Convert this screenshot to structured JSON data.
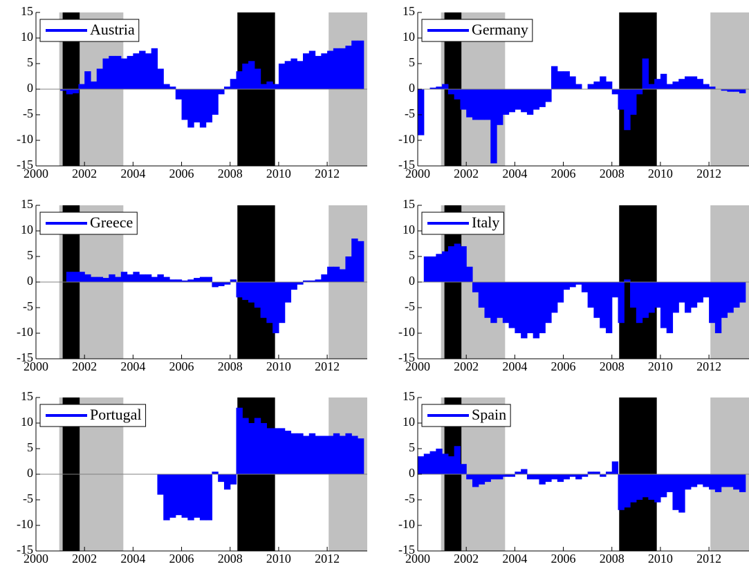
{
  "chart_data": [
    {
      "type": "bar",
      "xlim": [
        2000,
        2013.65
      ],
      "ylim": [
        -15,
        15
      ],
      "xticks": [
        2000,
        2002,
        2004,
        2006,
        2008,
        2010,
        2012
      ],
      "yticks": [
        -15,
        -10,
        -5,
        0,
        5,
        10,
        15
      ],
      "shading": [
        {
          "start": 2000.96,
          "end": 2003.6,
          "color": "#c0c0c0"
        },
        {
          "start": 2012.06,
          "end": 2013.65,
          "color": "#c0c0c0"
        },
        {
          "start": 2001.1,
          "end": 2001.8,
          "color": "#000000"
        },
        {
          "start": 2008.3,
          "end": 2009.85,
          "color": "#000000"
        }
      ],
      "x": [
        2000,
        2000.25,
        2000.5,
        2000.75,
        2001,
        2001.25,
        2001.5,
        2001.75,
        2002,
        2002.25,
        2002.5,
        2002.75,
        2003,
        2003.25,
        2003.5,
        2003.75,
        2004,
        2004.25,
        2004.5,
        2004.75,
        2005,
        2005.25,
        2005.5,
        2005.75,
        2006,
        2006.25,
        2006.5,
        2006.75,
        2007,
        2007.25,
        2007.5,
        2007.75,
        2008,
        2008.25,
        2008.5,
        2008.75,
        2009,
        2009.25,
        2009.5,
        2009.75,
        2010,
        2010.25,
        2010.5,
        2010.75,
        2011,
        2011.25,
        2011.5,
        2011.75,
        2012,
        2012.25,
        2012.5,
        2012.75,
        2013,
        2013.25
      ],
      "series": [
        {
          "name": "Austria",
          "color": "#0000ff",
          "values": [
            null,
            null,
            null,
            null,
            -0.3,
            -1,
            -0.8,
            1,
            3.5,
            1.5,
            4,
            6,
            6.5,
            6.5,
            6,
            6.5,
            7,
            7.5,
            7,
            8,
            4,
            1,
            0.5,
            -2,
            -6,
            -7.5,
            -6.5,
            -7.5,
            -6.5,
            -5,
            -1,
            0.5,
            2,
            3.5,
            5,
            5.5,
            4,
            1,
            1.5,
            1,
            5,
            5.5,
            6,
            5.5,
            7,
            7.5,
            6.5,
            7,
            7.5,
            8,
            8,
            8.5,
            9.5,
            9.5
          ]
        }
      ]
    },
    {
      "type": "bar",
      "xlim": [
        2000,
        2013.65
      ],
      "ylim": [
        -15,
        15
      ],
      "xticks": [
        2000,
        2002,
        2004,
        2006,
        2008,
        2010,
        2012
      ],
      "yticks": [
        -15,
        -10,
        -5,
        0,
        5,
        10,
        15
      ],
      "shading": [
        {
          "start": 2000.96,
          "end": 2003.6,
          "color": "#c0c0c0"
        },
        {
          "start": 2012.06,
          "end": 2013.65,
          "color": "#c0c0c0"
        },
        {
          "start": 2001.1,
          "end": 2001.8,
          "color": "#000000"
        },
        {
          "start": 2008.3,
          "end": 2009.85,
          "color": "#000000"
        }
      ],
      "x": [
        2000,
        2000.25,
        2000.5,
        2000.75,
        2001,
        2001.25,
        2001.5,
        2001.75,
        2002,
        2002.25,
        2002.5,
        2002.75,
        2003,
        2003.25,
        2003.5,
        2003.75,
        2004,
        2004.25,
        2004.5,
        2004.75,
        2005,
        2005.25,
        2005.5,
        2005.75,
        2006,
        2006.25,
        2006.5,
        2006.75,
        2007,
        2007.25,
        2007.5,
        2007.75,
        2008,
        2008.25,
        2008.5,
        2008.75,
        2009,
        2009.25,
        2009.5,
        2009.75,
        2010,
        2010.25,
        2010.5,
        2010.75,
        2011,
        2011.25,
        2011.5,
        2011.75,
        2012,
        2012.25,
        2012.5,
        2012.75,
        2013,
        2013.25
      ],
      "series": [
        {
          "name": "Germany",
          "color": "#0000ff",
          "values": [
            -9,
            0,
            0.3,
            0.5,
            1,
            -1,
            -2,
            -4,
            -5.5,
            -6,
            -6,
            -6,
            -14.5,
            -7,
            -5,
            -4.5,
            -4,
            -4.5,
            -5,
            -4,
            -3.5,
            -2.5,
            4.5,
            3.5,
            3.5,
            2.5,
            1,
            0,
            1,
            1.5,
            2.5,
            1.5,
            -1,
            -4,
            -8,
            -5,
            -1,
            6,
            1,
            2,
            3,
            1,
            1.5,
            2,
            2.5,
            2.5,
            2,
            1,
            0.5,
            0,
            -0.3,
            -0.5,
            -0.5,
            -0.8
          ]
        }
      ]
    },
    {
      "type": "bar",
      "xlim": [
        2000,
        2013.65
      ],
      "ylim": [
        -15,
        15
      ],
      "xticks": [
        2000,
        2002,
        2004,
        2006,
        2008,
        2010,
        2012
      ],
      "yticks": [
        -15,
        -10,
        -5,
        0,
        5,
        10,
        15
      ],
      "shading": [
        {
          "start": 2000.96,
          "end": 2003.6,
          "color": "#c0c0c0"
        },
        {
          "start": 2012.06,
          "end": 2013.65,
          "color": "#c0c0c0"
        },
        {
          "start": 2001.1,
          "end": 2001.8,
          "color": "#000000"
        },
        {
          "start": 2008.3,
          "end": 2009.85,
          "color": "#000000"
        }
      ],
      "x": [
        2000,
        2000.25,
        2000.5,
        2000.75,
        2001,
        2001.25,
        2001.5,
        2001.75,
        2002,
        2002.25,
        2002.5,
        2002.75,
        2003,
        2003.25,
        2003.5,
        2003.75,
        2004,
        2004.25,
        2004.5,
        2004.75,
        2005,
        2005.25,
        2005.5,
        2005.75,
        2006,
        2006.25,
        2006.5,
        2006.75,
        2007,
        2007.25,
        2007.5,
        2007.75,
        2008,
        2008.25,
        2008.5,
        2008.75,
        2009,
        2009.25,
        2009.5,
        2009.75,
        2010,
        2010.25,
        2010.5,
        2010.75,
        2011,
        2011.25,
        2011.5,
        2011.75,
        2012,
        2012.25,
        2012.5,
        2012.75,
        2013,
        2013.25
      ],
      "series": [
        {
          "name": "Greece",
          "color": "#0000ff",
          "values": [
            null,
            null,
            null,
            null,
            null,
            2,
            2,
            2,
            1.5,
            1,
            1,
            0.8,
            1.5,
            1,
            2,
            1.5,
            2,
            1.5,
            1.5,
            1,
            1.5,
            1,
            0.5,
            0.5,
            0.3,
            0.5,
            0.8,
            1,
            1,
            -1,
            -0.8,
            -0.5,
            0.5,
            -3,
            -3.5,
            -4,
            -5,
            -7,
            -8,
            -10,
            -8,
            -4,
            -1.5,
            -0.5,
            0.3,
            0.3,
            0.5,
            1.5,
            3,
            3,
            2.5,
            5,
            8.5,
            8
          ]
        }
      ]
    },
    {
      "type": "bar",
      "xlim": [
        2000,
        2013.65
      ],
      "ylim": [
        -15,
        15
      ],
      "xticks": [
        2000,
        2002,
        2004,
        2006,
        2008,
        2010,
        2012
      ],
      "yticks": [
        -15,
        -10,
        -5,
        0,
        5,
        10,
        15
      ],
      "shading": [
        {
          "start": 2000.96,
          "end": 2003.6,
          "color": "#c0c0c0"
        },
        {
          "start": 2012.06,
          "end": 2013.65,
          "color": "#c0c0c0"
        },
        {
          "start": 2001.1,
          "end": 2001.8,
          "color": "#000000"
        },
        {
          "start": 2008.3,
          "end": 2009.85,
          "color": "#000000"
        }
      ],
      "x": [
        2000,
        2000.25,
        2000.5,
        2000.75,
        2001,
        2001.25,
        2001.5,
        2001.75,
        2002,
        2002.25,
        2002.5,
        2002.75,
        2003,
        2003.25,
        2003.5,
        2003.75,
        2004,
        2004.25,
        2004.5,
        2004.75,
        2005,
        2005.25,
        2005.5,
        2005.75,
        2006,
        2006.25,
        2006.5,
        2006.75,
        2007,
        2007.25,
        2007.5,
        2007.75,
        2008,
        2008.25,
        2008.5,
        2008.75,
        2009,
        2009.25,
        2009.5,
        2009.75,
        2010,
        2010.25,
        2010.5,
        2010.75,
        2011,
        2011.25,
        2011.5,
        2011.75,
        2012,
        2012.25,
        2012.5,
        2012.75,
        2013,
        2013.25
      ],
      "series": [
        {
          "name": "Italy",
          "color": "#0000ff",
          "values": [
            null,
            5,
            5,
            5.5,
            6,
            7,
            7.5,
            7,
            3,
            -2,
            -5,
            -7,
            -8,
            -7,
            -8,
            -9,
            -10,
            -11,
            -10,
            -11,
            -10,
            -8,
            -6,
            -4,
            -1.5,
            -1,
            -0.5,
            -2,
            -5,
            -7,
            -9,
            -10,
            -3,
            -8,
            0.5,
            -5,
            -8,
            -7,
            -6,
            -5,
            -9,
            -10,
            -6,
            -4,
            -6,
            -5,
            -4,
            -3,
            -8,
            -10,
            -7,
            -6,
            -5,
            -4
          ]
        }
      ]
    },
    {
      "type": "bar",
      "xlim": [
        2000,
        2013.65
      ],
      "ylim": [
        -15,
        15
      ],
      "xticks": [
        2000,
        2002,
        2004,
        2006,
        2008,
        2010,
        2012
      ],
      "yticks": [
        -15,
        -10,
        -5,
        0,
        5,
        10,
        15
      ],
      "shading": [
        {
          "start": 2000.96,
          "end": 2003.6,
          "color": "#c0c0c0"
        },
        {
          "start": 2012.06,
          "end": 2013.65,
          "color": "#c0c0c0"
        },
        {
          "start": 2001.1,
          "end": 2001.8,
          "color": "#000000"
        },
        {
          "start": 2008.3,
          "end": 2009.85,
          "color": "#000000"
        }
      ],
      "x": [
        2000,
        2000.25,
        2000.5,
        2000.75,
        2001,
        2001.25,
        2001.5,
        2001.75,
        2002,
        2002.25,
        2002.5,
        2002.75,
        2003,
        2003.25,
        2003.5,
        2003.75,
        2004,
        2004.25,
        2004.5,
        2004.75,
        2005,
        2005.25,
        2005.5,
        2005.75,
        2006,
        2006.25,
        2006.5,
        2006.75,
        2007,
        2007.25,
        2007.5,
        2007.75,
        2008,
        2008.25,
        2008.5,
        2008.75,
        2009,
        2009.25,
        2009.5,
        2009.75,
        2010,
        2010.25,
        2010.5,
        2010.75,
        2011,
        2011.25,
        2011.5,
        2011.75,
        2012,
        2012.25,
        2012.5,
        2012.75,
        2013,
        2013.25
      ],
      "series": [
        {
          "name": "Portugal",
          "color": "#0000ff",
          "values": [
            null,
            null,
            null,
            null,
            null,
            null,
            null,
            null,
            null,
            null,
            null,
            null,
            null,
            null,
            null,
            null,
            null,
            null,
            null,
            null,
            -4,
            -9,
            -8.5,
            -8,
            -8.5,
            -9,
            -8.5,
            -9,
            -9,
            0.5,
            -1.5,
            -3,
            -2,
            13,
            11,
            10,
            11,
            10,
            9,
            9,
            9,
            8.5,
            8,
            8,
            7.5,
            8,
            7.5,
            7.5,
            7.5,
            8,
            7.5,
            8,
            7.5,
            7
          ]
        }
      ]
    },
    {
      "type": "bar",
      "xlim": [
        2000,
        2013.65
      ],
      "ylim": [
        -15,
        15
      ],
      "xticks": [
        2000,
        2002,
        2004,
        2006,
        2008,
        2010,
        2012
      ],
      "yticks": [
        -15,
        -10,
        -5,
        0,
        5,
        10,
        15
      ],
      "shading": [
        {
          "start": 2000.96,
          "end": 2003.6,
          "color": "#c0c0c0"
        },
        {
          "start": 2012.06,
          "end": 2013.65,
          "color": "#c0c0c0"
        },
        {
          "start": 2001.1,
          "end": 2001.8,
          "color": "#000000"
        },
        {
          "start": 2008.3,
          "end": 2009.85,
          "color": "#000000"
        }
      ],
      "x": [
        2000,
        2000.25,
        2000.5,
        2000.75,
        2001,
        2001.25,
        2001.5,
        2001.75,
        2002,
        2002.25,
        2002.5,
        2002.75,
        2003,
        2003.25,
        2003.5,
        2003.75,
        2004,
        2004.25,
        2004.5,
        2004.75,
        2005,
        2005.25,
        2005.5,
        2005.75,
        2006,
        2006.25,
        2006.5,
        2006.75,
        2007,
        2007.25,
        2007.5,
        2007.75,
        2008,
        2008.25,
        2008.5,
        2008.75,
        2009,
        2009.25,
        2009.5,
        2009.75,
        2010,
        2010.25,
        2010.5,
        2010.75,
        2011,
        2011.25,
        2011.5,
        2011.75,
        2012,
        2012.25,
        2012.5,
        2012.75,
        2013,
        2013.25
      ],
      "series": [
        {
          "name": "Spain",
          "color": "#0000ff",
          "values": [
            3.5,
            4,
            4.5,
            5,
            4,
            3.5,
            5.5,
            2,
            -1,
            -2.5,
            -2,
            -1.5,
            -1,
            -1,
            -0.5,
            -0.5,
            0.5,
            1,
            -1,
            -1,
            -2,
            -1.5,
            -1,
            -1.5,
            -1,
            -0.5,
            -1,
            -0.5,
            0.5,
            0.5,
            -0.5,
            0.5,
            2.5,
            -7,
            -6.5,
            -5.5,
            -5,
            -4.5,
            -5,
            -5.5,
            -4.5,
            -3.5,
            -7,
            -7.5,
            -3,
            -2.5,
            -2,
            -2.5,
            -3,
            -3.5,
            -2.5,
            -2.5,
            -3,
            -3.5
          ]
        }
      ]
    }
  ]
}
